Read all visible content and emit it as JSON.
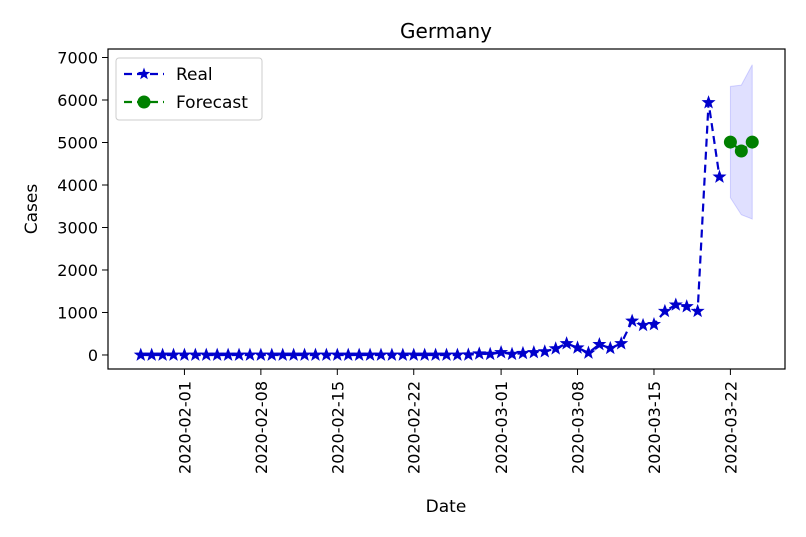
{
  "chart_data": {
    "type": "line",
    "title": "Germany",
    "xlabel": "Date",
    "ylabel": "Cases",
    "ylim": [
      -330,
      7200
    ],
    "xlim": [
      "2020-01-25",
      "2020-03-27"
    ],
    "yticks": [
      0,
      1000,
      2000,
      3000,
      4000,
      5000,
      6000,
      7000
    ],
    "xticks": [
      "2020-02-01",
      "2020-02-08",
      "2020-02-15",
      "2020-02-22",
      "2020-03-01",
      "2020-03-08",
      "2020-03-15",
      "2020-03-22"
    ],
    "grid": false,
    "legend_position": "top-left",
    "series": [
      {
        "name": "Real",
        "style": "dashed line with star markers",
        "color": "#0000cc",
        "points": [
          [
            "2020-01-28",
            0
          ],
          [
            "2020-01-29",
            0
          ],
          [
            "2020-01-30",
            0
          ],
          [
            "2020-01-31",
            0
          ],
          [
            "2020-02-01",
            0
          ],
          [
            "2020-02-02",
            0
          ],
          [
            "2020-02-03",
            0
          ],
          [
            "2020-02-04",
            0
          ],
          [
            "2020-02-05",
            0
          ],
          [
            "2020-02-06",
            0
          ],
          [
            "2020-02-07",
            0
          ],
          [
            "2020-02-08",
            0
          ],
          [
            "2020-02-09",
            0
          ],
          [
            "2020-02-10",
            0
          ],
          [
            "2020-02-11",
            0
          ],
          [
            "2020-02-12",
            0
          ],
          [
            "2020-02-13",
            0
          ],
          [
            "2020-02-14",
            0
          ],
          [
            "2020-02-15",
            0
          ],
          [
            "2020-02-16",
            0
          ],
          [
            "2020-02-17",
            0
          ],
          [
            "2020-02-18",
            0
          ],
          [
            "2020-02-19",
            0
          ],
          [
            "2020-02-20",
            0
          ],
          [
            "2020-02-21",
            0
          ],
          [
            "2020-02-22",
            0
          ],
          [
            "2020-02-23",
            0
          ],
          [
            "2020-02-24",
            0
          ],
          [
            "2020-02-25",
            0
          ],
          [
            "2020-02-26",
            0
          ],
          [
            "2020-02-27",
            5
          ],
          [
            "2020-02-28",
            30
          ],
          [
            "2020-02-29",
            20
          ],
          [
            "2020-03-01",
            60
          ],
          [
            "2020-03-02",
            20
          ],
          [
            "2020-03-03",
            40
          ],
          [
            "2020-03-04",
            60
          ],
          [
            "2020-03-05",
            80
          ],
          [
            "2020-03-06",
            150
          ],
          [
            "2020-03-07",
            270
          ],
          [
            "2020-03-08",
            170
          ],
          [
            "2020-03-09",
            50
          ],
          [
            "2020-03-10",
            250
          ],
          [
            "2020-03-11",
            160
          ],
          [
            "2020-03-12",
            270
          ],
          [
            "2020-03-13",
            800
          ],
          [
            "2020-03-14",
            700
          ],
          [
            "2020-03-15",
            720
          ],
          [
            "2020-03-16",
            1030
          ],
          [
            "2020-03-17",
            1180
          ],
          [
            "2020-03-18",
            1140
          ],
          [
            "2020-03-19",
            1030
          ],
          [
            "2020-03-20",
            5940
          ],
          [
            "2020-03-21",
            4190
          ]
        ]
      },
      {
        "name": "Forecast",
        "style": "dashed line with circle markers",
        "color": "#008000",
        "points": [
          [
            "2020-03-22",
            5010
          ],
          [
            "2020-03-23",
            4800
          ],
          [
            "2020-03-24",
            5010
          ]
        ],
        "band": {
          "color": "#0000ff",
          "lower": [
            [
              "2020-03-22",
              3700
            ],
            [
              "2020-03-23",
              3300
            ],
            [
              "2020-03-24",
              3200
            ]
          ],
          "upper": [
            [
              "2020-03-22",
              6320
            ],
            [
              "2020-03-23",
              6350
            ],
            [
              "2020-03-24",
              6830
            ]
          ]
        }
      }
    ]
  }
}
